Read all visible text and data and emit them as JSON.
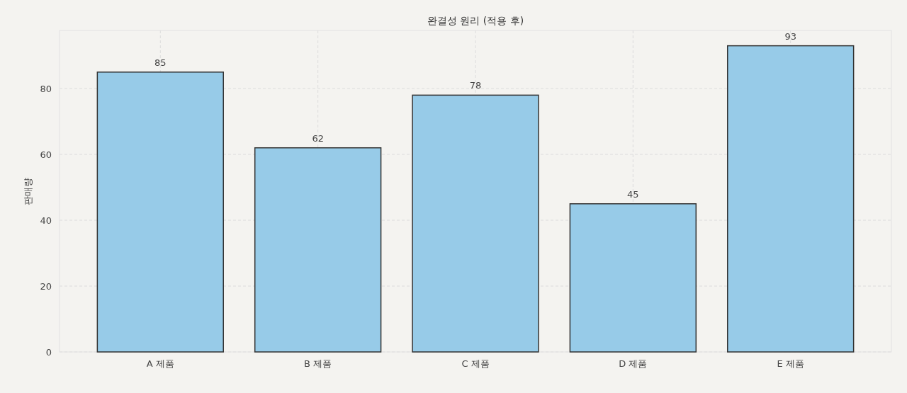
{
  "chart_data": {
    "type": "bar",
    "title": "완결성 원리 (적용 후)",
    "ylabel": "판매량",
    "categories": [
      "A 제품",
      "B 제품",
      "C 제품",
      "D 제품",
      "E 제품"
    ],
    "values": [
      85,
      62,
      78,
      45,
      93
    ],
    "color": "#97cbe8",
    "ylim": [
      0,
      97.65
    ],
    "yticks": [
      0,
      20,
      40,
      60,
      80
    ],
    "grid": true,
    "data_labels": true
  }
}
